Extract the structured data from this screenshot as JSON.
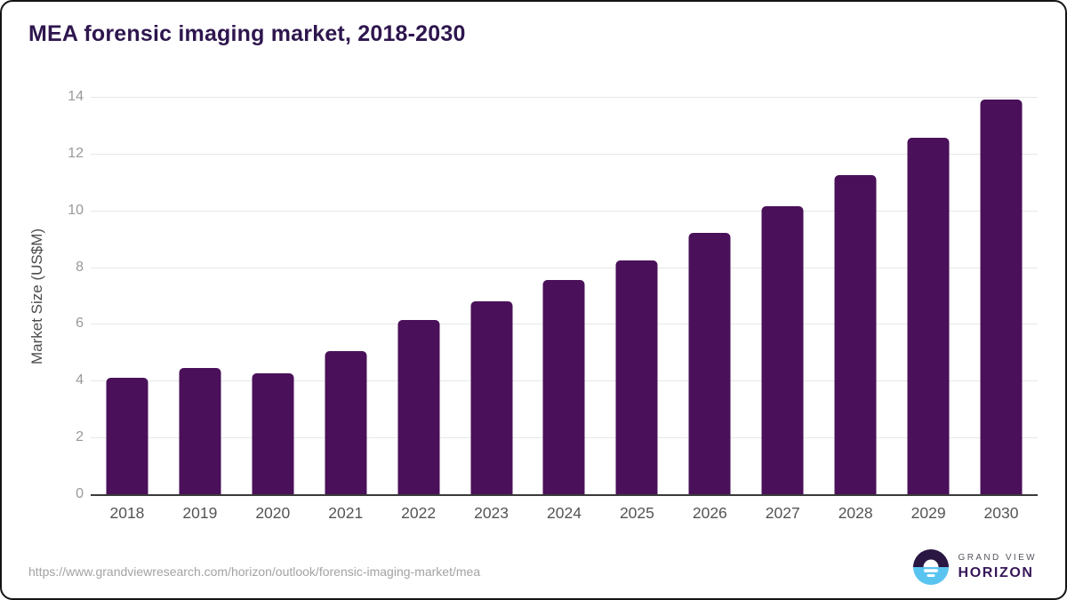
{
  "window": {
    "background": "#ffffff",
    "border_color": "#141414"
  },
  "header": {
    "title": "MEA forensic imaging market, 2018-2030",
    "title_color": "#2e164e"
  },
  "chart_data": {
    "type": "bar",
    "title": "MEA forensic imaging market, 2018-2030",
    "categories": [
      "2018",
      "2019",
      "2020",
      "2021",
      "2022",
      "2023",
      "2024",
      "2025",
      "2026",
      "2027",
      "2028",
      "2029",
      "2030"
    ],
    "values": [
      4.1,
      4.45,
      4.25,
      5.05,
      6.15,
      6.8,
      7.55,
      8.25,
      9.2,
      10.15,
      11.25,
      12.55,
      13.9
    ],
    "xlabel": "",
    "ylabel": "Market Size (US$M)",
    "ylim": [
      0,
      14
    ],
    "yticks": [
      0,
      2,
      4,
      6,
      8,
      10,
      12,
      14
    ],
    "grid": "horizontal",
    "legend": "none",
    "bar_color": "#4a1059",
    "axis_line_color": "#3a3a3a",
    "gridline_color": "#e7e7e7",
    "y_tick_color": "#999999",
    "x_tick_color": "#545454"
  },
  "footer": {
    "source_url": "https://www.grandviewresearch.com/horizon/outlook/forensic-imaging-market/mea",
    "logo": {
      "line1": "GRAND VIEW",
      "line2": "HORIZON",
      "circle_top_color": "#2a1642",
      "circle_bottom_color": "#5ac4f0"
    }
  }
}
